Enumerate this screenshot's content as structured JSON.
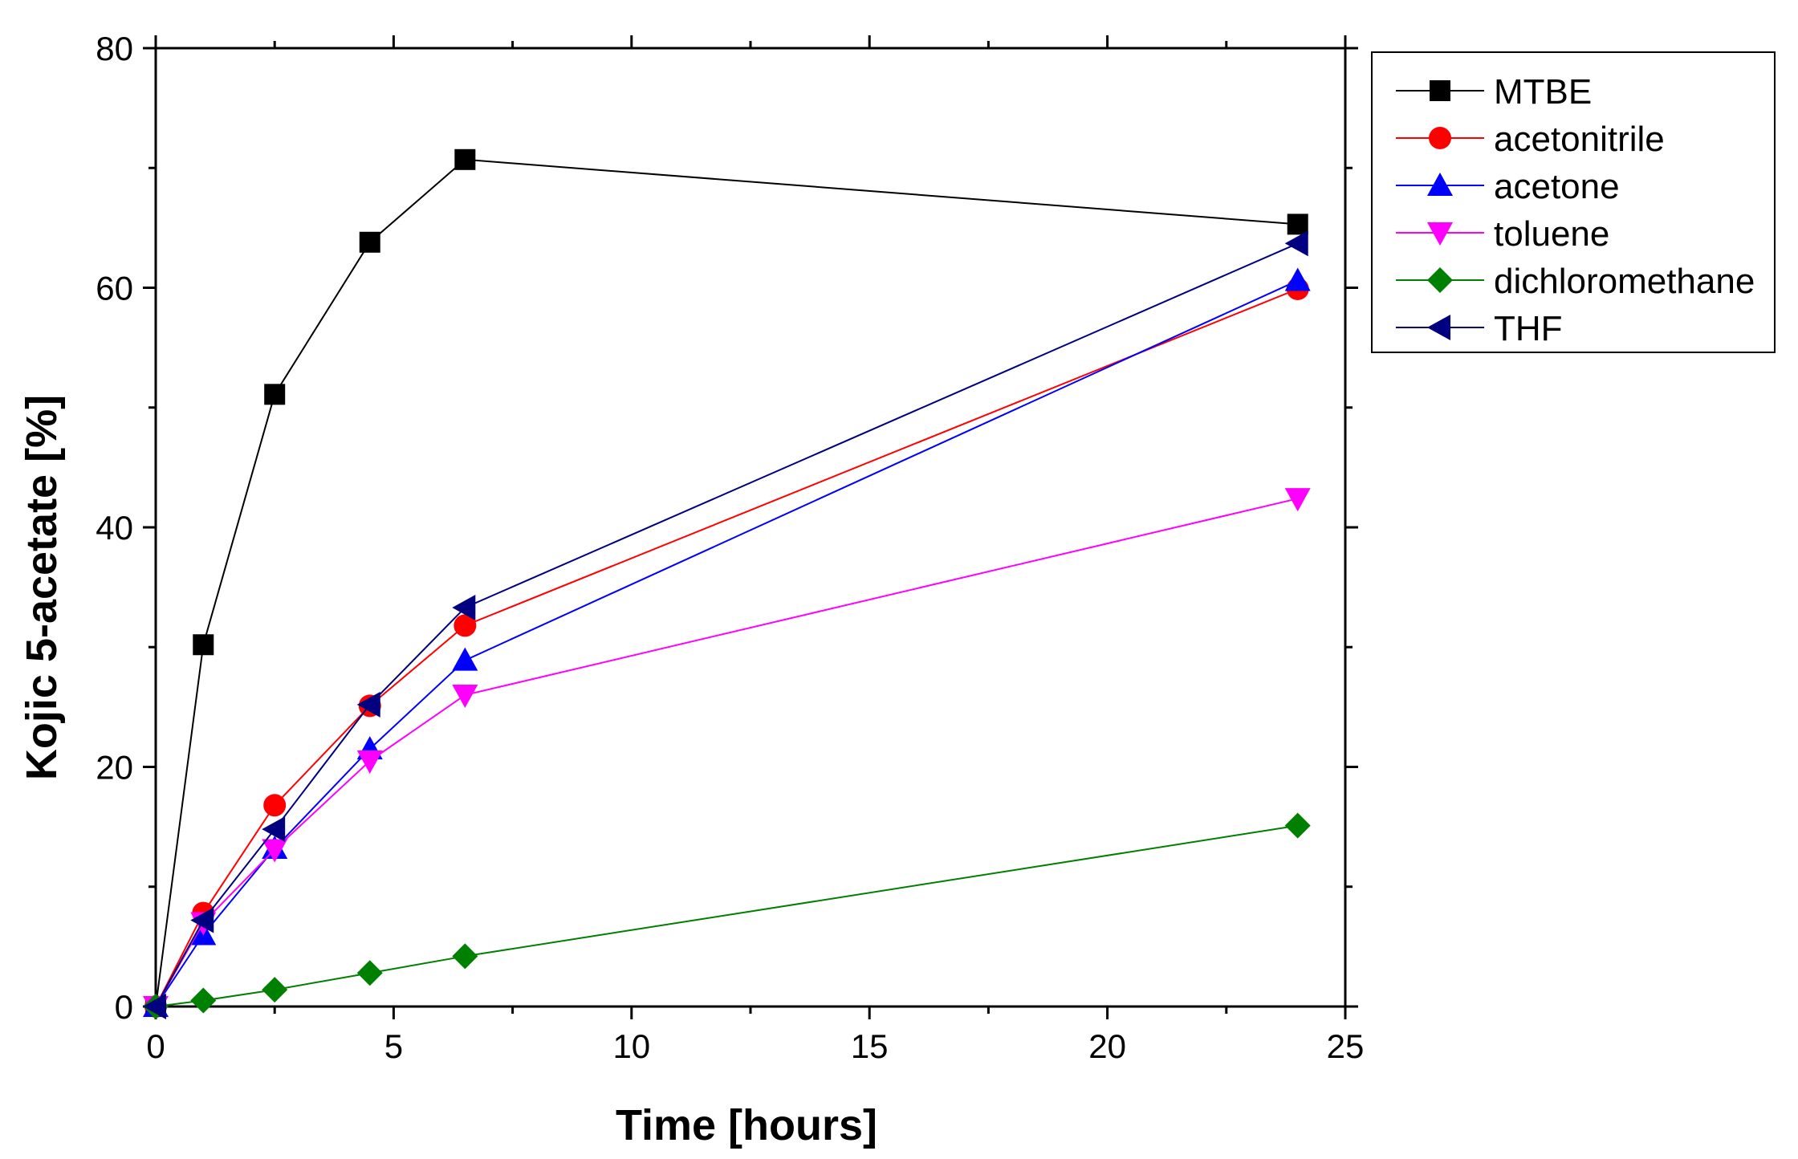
{
  "chart_data": {
    "type": "line",
    "title": "",
    "xlabel": "Time [hours]",
    "ylabel": "Kojic 5-acetate [%]",
    "xlim": [
      0,
      25
    ],
    "ylim": [
      0,
      80
    ],
    "xticks": [
      0,
      5,
      10,
      15,
      20,
      25
    ],
    "yticks": [
      0,
      20,
      40,
      60,
      80
    ],
    "xtick_labels": [
      "0",
      "5",
      "10",
      "15",
      "20",
      "25"
    ],
    "ytick_labels": [
      "0",
      "20",
      "40",
      "60",
      "80"
    ],
    "grid": false,
    "legend_position": "outside-top-right",
    "series": [
      {
        "name": "MTBE",
        "color": "#000000",
        "marker": "square",
        "x": [
          0,
          1,
          2.5,
          4.5,
          6.5,
          24
        ],
        "y": [
          0,
          30.2,
          51.1,
          63.8,
          70.7,
          65.3
        ]
      },
      {
        "name": "acetonitrile",
        "color": "#ff0000",
        "marker": "circle",
        "x": [
          0,
          1,
          2.5,
          4.5,
          6.5,
          24
        ],
        "y": [
          0,
          7.8,
          16.8,
          25.1,
          31.8,
          59.9
        ]
      },
      {
        "name": "acetone",
        "color": "#0000ff",
        "marker": "triangle-up",
        "x": [
          0,
          1,
          2.5,
          4.5,
          6.5,
          24
        ],
        "y": [
          0,
          6.0,
          13.2,
          21.5,
          28.9,
          60.6
        ]
      },
      {
        "name": "toluene",
        "color": "#ff00ff",
        "marker": "triangle-down",
        "x": [
          0,
          1,
          2.5,
          4.5,
          6.5,
          24
        ],
        "y": [
          0,
          7.0,
          13.1,
          20.5,
          26.0,
          42.4
        ]
      },
      {
        "name": "dichloromethane",
        "color": "#008000",
        "marker": "diamond",
        "x": [
          0,
          1,
          2.5,
          4.5,
          6.5,
          24
        ],
        "y": [
          0,
          0.5,
          1.4,
          2.8,
          4.2,
          15.1
        ]
      },
      {
        "name": "THF",
        "color": "#000080",
        "marker": "triangle-left",
        "x": [
          0,
          1,
          2.5,
          4.5,
          6.5,
          24
        ],
        "y": [
          0,
          7.2,
          14.8,
          25.2,
          33.3,
          63.7
        ]
      }
    ]
  }
}
